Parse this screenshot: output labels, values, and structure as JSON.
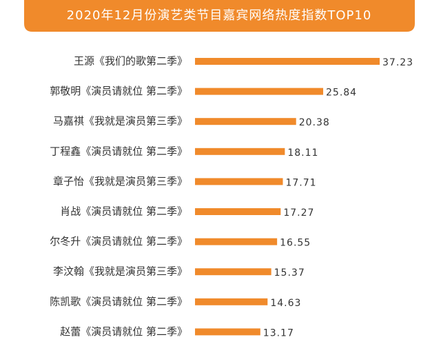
{
  "chart_data": {
    "type": "bar",
    "orientation": "horizontal",
    "title": "2020年12月份演艺类节目嘉宾网络热度指数TOP10",
    "categories": [
      "王源《我们的歌第二季》",
      "郭敬明《演员请就位 第二季》",
      "马嘉祺《我就是演员第三季》",
      "丁程鑫《演员请就位 第二季》",
      "章子怡《我就是演员第三季》",
      "肖战《演员请就位 第二季》",
      "尔冬升《演员请就位 第二季》",
      "李汶翰《我就是演员第三季》",
      "陈凯歌《演员请就位 第二季》",
      "赵蕾《演员请就位 第二季》"
    ],
    "values": [
      37.23,
      25.84,
      20.38,
      18.11,
      17.71,
      17.27,
      16.55,
      15.37,
      14.63,
      13.17
    ],
    "color": "#f08a2b",
    "title_color": "#f08a2b"
  }
}
